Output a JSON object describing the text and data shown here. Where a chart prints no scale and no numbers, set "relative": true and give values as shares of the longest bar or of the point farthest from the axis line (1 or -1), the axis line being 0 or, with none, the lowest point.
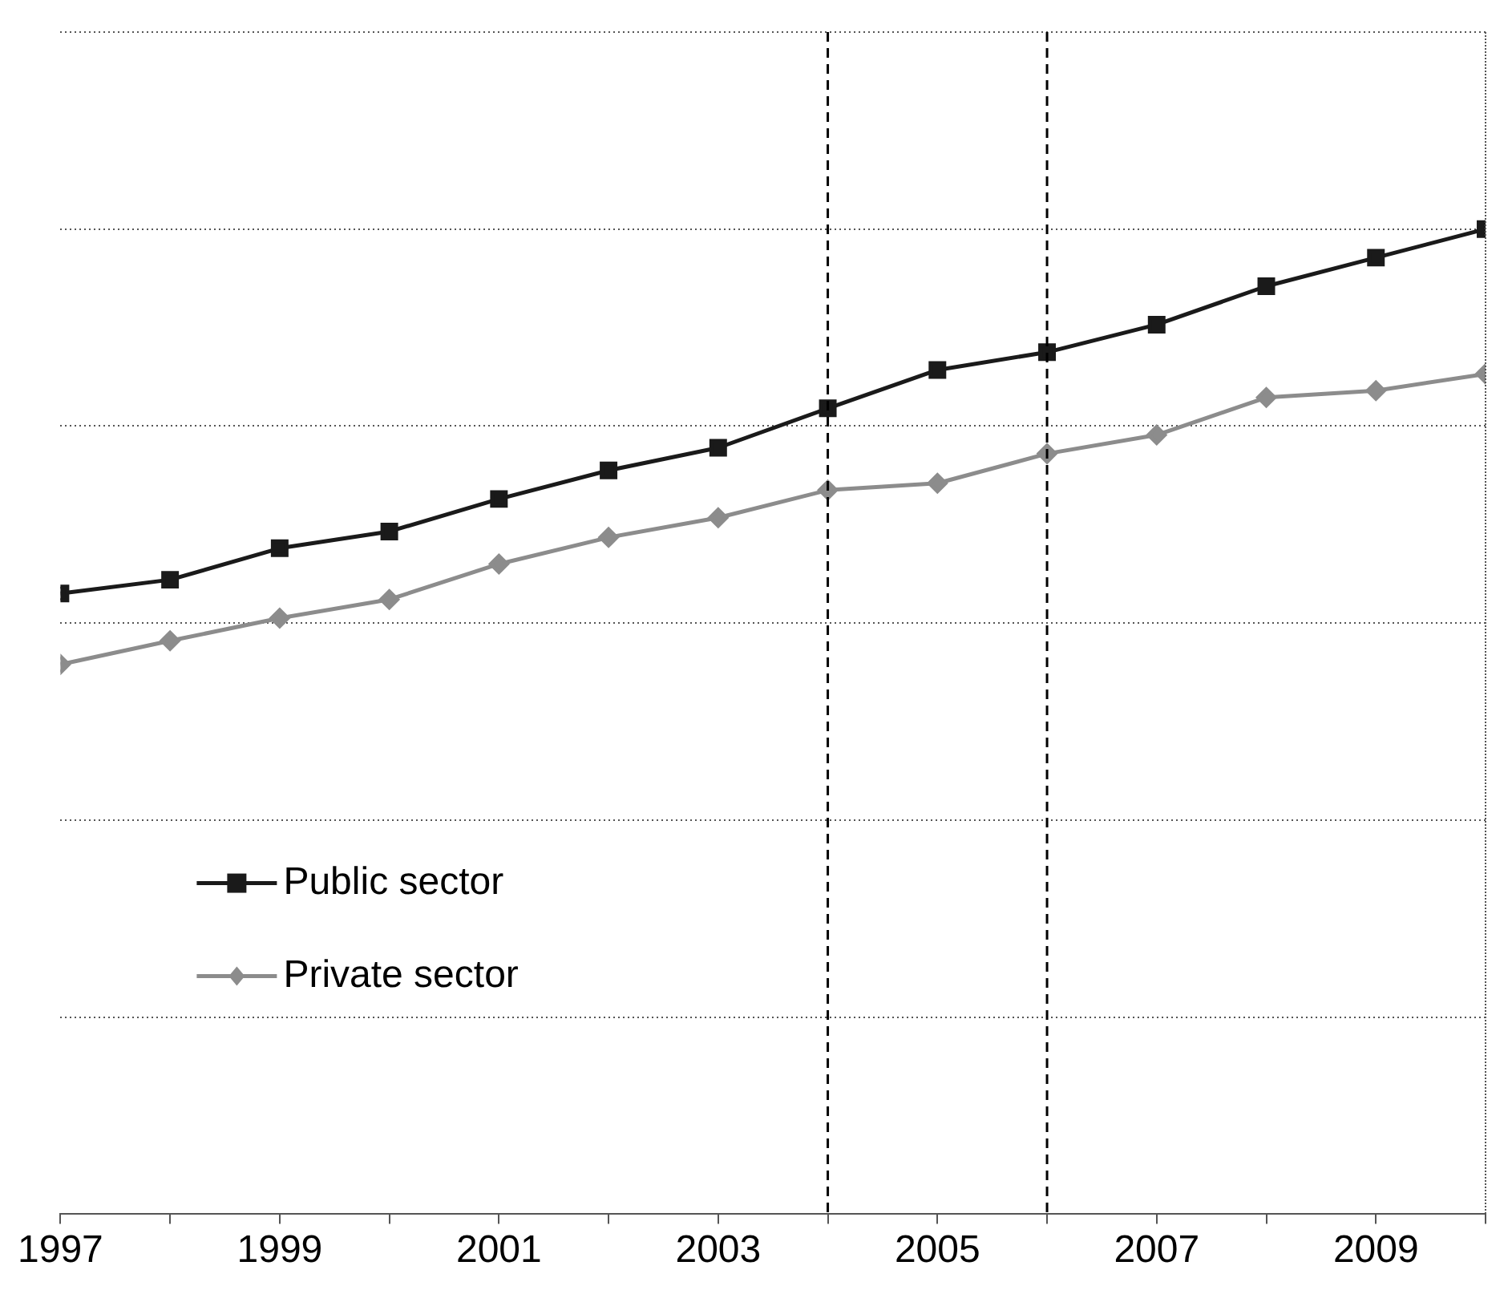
{
  "chart_data": {
    "type": "line",
    "relative": true,
    "x": [
      1997,
      1998,
      1999,
      2000,
      2001,
      2002,
      2003,
      2004,
      2005,
      2006,
      2007,
      2008,
      2009,
      2010
    ],
    "xlim": [
      1997,
      2010
    ],
    "xticks": [
      1997,
      {
        "value": 1998,
        "label": null
      },
      1999,
      {
        "value": 2000,
        "label": null
      },
      2001,
      {
        "value": 2002,
        "label": null
      },
      2003,
      {
        "value": 2004,
        "label": null
      },
      2005,
      {
        "value": 2006,
        "label": null
      },
      2007,
      {
        "value": 2008,
        "label": null
      },
      2009,
      {
        "value": 2010,
        "label": null
      }
    ],
    "series": [
      {
        "name": "Public sector",
        "color": "#1a1a1a",
        "marker": "square",
        "values": [
          0.63,
          0.644,
          0.676,
          0.693,
          0.726,
          0.755,
          0.778,
          0.818,
          0.857,
          0.875,
          0.903,
          0.942,
          0.971,
          1
        ]
      },
      {
        "name": "Private sector",
        "color": "#8c8c8c",
        "marker": "diamond",
        "values": [
          0.558,
          0.582,
          0.605,
          0.624,
          0.66,
          0.687,
          0.707,
          0.735,
          0.742,
          0.772,
          0.791,
          0.829,
          0.836,
          0.853
        ]
      }
    ],
    "ref_lines": [
      {
        "axis": "x",
        "value": 2004,
        "line_style": "dashed",
        "color": "#000000"
      },
      {
        "axis": "x",
        "value": 2006,
        "line_style": "dashed",
        "color": "#000000"
      }
    ],
    "grid": "y",
    "legend": "left",
    "line_style": "solid"
  }
}
